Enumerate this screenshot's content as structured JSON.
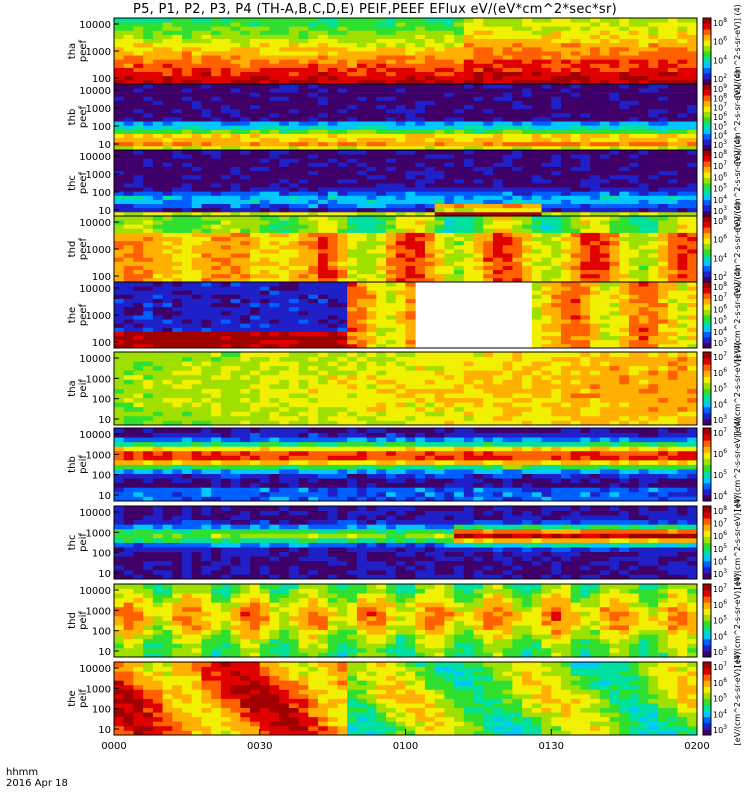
{
  "page": {
    "title": "P5, P1, P2, P3, P4 (TH-A,B,C,D,E) PEIF,PEEF EFlux eV/(eV*cm^2*sec*sr)",
    "xaxis_unit": "hhmm",
    "date": "2016 Apr 18",
    "cbar_unit": "[eV/(cm^2-s-sr-eV)]"
  },
  "chart_data": {
    "type": "heatmap",
    "x": [
      "0000",
      "0030",
      "0100",
      "0130",
      "0200"
    ],
    "xlim_minutes": [
      0,
      120
    ],
    "panels": [
      {
        "id": "tha-peef",
        "label": "tha peef",
        "yticks": [
          "10000",
          "1000",
          "100"
        ],
        "cbar_ticks": [
          "10^8",
          "10^6",
          "10^4",
          "10^2"
        ],
        "cbar_unit": "[eV/(cm^2-s-sr-eV)] (4)"
      },
      {
        "id": "thb-peef",
        "label": "thb peef",
        "yticks": [
          "10000",
          "1000",
          "100",
          "10"
        ],
        "cbar_ticks": [
          "10^9",
          "10^8",
          "10^7",
          "10^6",
          "10^5",
          "10^4",
          "10^3"
        ],
        "cbar_unit": "[eV/(cm^2-s-sr-eV)] (4)"
      },
      {
        "id": "thc-peef",
        "label": "thc peef",
        "yticks": [
          "10000",
          "1000",
          "100",
          "10"
        ],
        "cbar_ticks": [
          "10^8",
          "10^7",
          "10^6",
          "10^5",
          "10^4",
          "10^3"
        ],
        "cbar_unit": "[eV/(cm^2-s-sr-eV)] (4)"
      },
      {
        "id": "thd-peef",
        "label": "thd peef",
        "yticks": [
          "10000",
          "1000",
          "100"
        ],
        "cbar_ticks": [
          "10^8",
          "10^6",
          "10^4",
          "10^2"
        ],
        "cbar_unit": "[eV/(cm^2-s-sr-eV)] (4)"
      },
      {
        "id": "the-peef",
        "label": "the peef",
        "yticks": [
          "10000",
          "1000",
          "100"
        ],
        "cbar_ticks": [
          "10^8",
          "10^7",
          "10^6",
          "10^5",
          "10^4",
          "10^3"
        ],
        "cbar_unit": "[eV/(cm^2-s-sr-eV)] (4)"
      },
      {
        "id": "tha-peif",
        "label": "tha peif",
        "yticks": [
          "10000",
          "1000",
          "100",
          "10"
        ],
        "cbar_ticks": [
          "10^7",
          "10^6",
          "10^5",
          "10^4",
          "10^3"
        ],
        "cbar_unit": "[eV/(cm^2-s-sr-eV)] (4)"
      },
      {
        "id": "thb-peif",
        "label": "thb peif",
        "yticks": [
          "10000",
          "1000",
          "100",
          "10"
        ],
        "cbar_ticks": [
          "10^7",
          "10^6",
          "10^5",
          "10^4"
        ],
        "cbar_unit": "[eV/(cm^2-s-sr-eV)] (4)"
      },
      {
        "id": "thc-peif",
        "label": "thc peif",
        "yticks": [
          "10000",
          "1000",
          "100",
          "10"
        ],
        "cbar_ticks": [
          "10^8",
          "10^7",
          "10^6",
          "10^5",
          "10^4",
          "10^3"
        ],
        "cbar_unit": "[eV/(cm^2-s-sr-eV)] (4)"
      },
      {
        "id": "thd-peif",
        "label": "thd peif",
        "yticks": [
          "10000",
          "1000",
          "100",
          "10"
        ],
        "cbar_ticks": [
          "10^7",
          "10^6",
          "10^5",
          "10^4",
          "10^3"
        ],
        "cbar_unit": "[eV/(cm^2-s-sr-eV)] (4)"
      },
      {
        "id": "the-peif",
        "label": "the peif",
        "yticks": [
          "10000",
          "1000",
          "100",
          "10"
        ],
        "cbar_ticks": [
          "10^7",
          "10^6",
          "10^5",
          "10^4",
          "10^3"
        ],
        "cbar_unit": "[eV/(cm^2-s-sr-eV)] (4)"
      }
    ],
    "colors": [
      "#40006a",
      "#2020c8",
      "#0060ff",
      "#00c8ff",
      "#00e0a0",
      "#30e030",
      "#a0e000",
      "#f0f000",
      "#ffb000",
      "#ff6000",
      "#e00000",
      "#a00000"
    ]
  }
}
